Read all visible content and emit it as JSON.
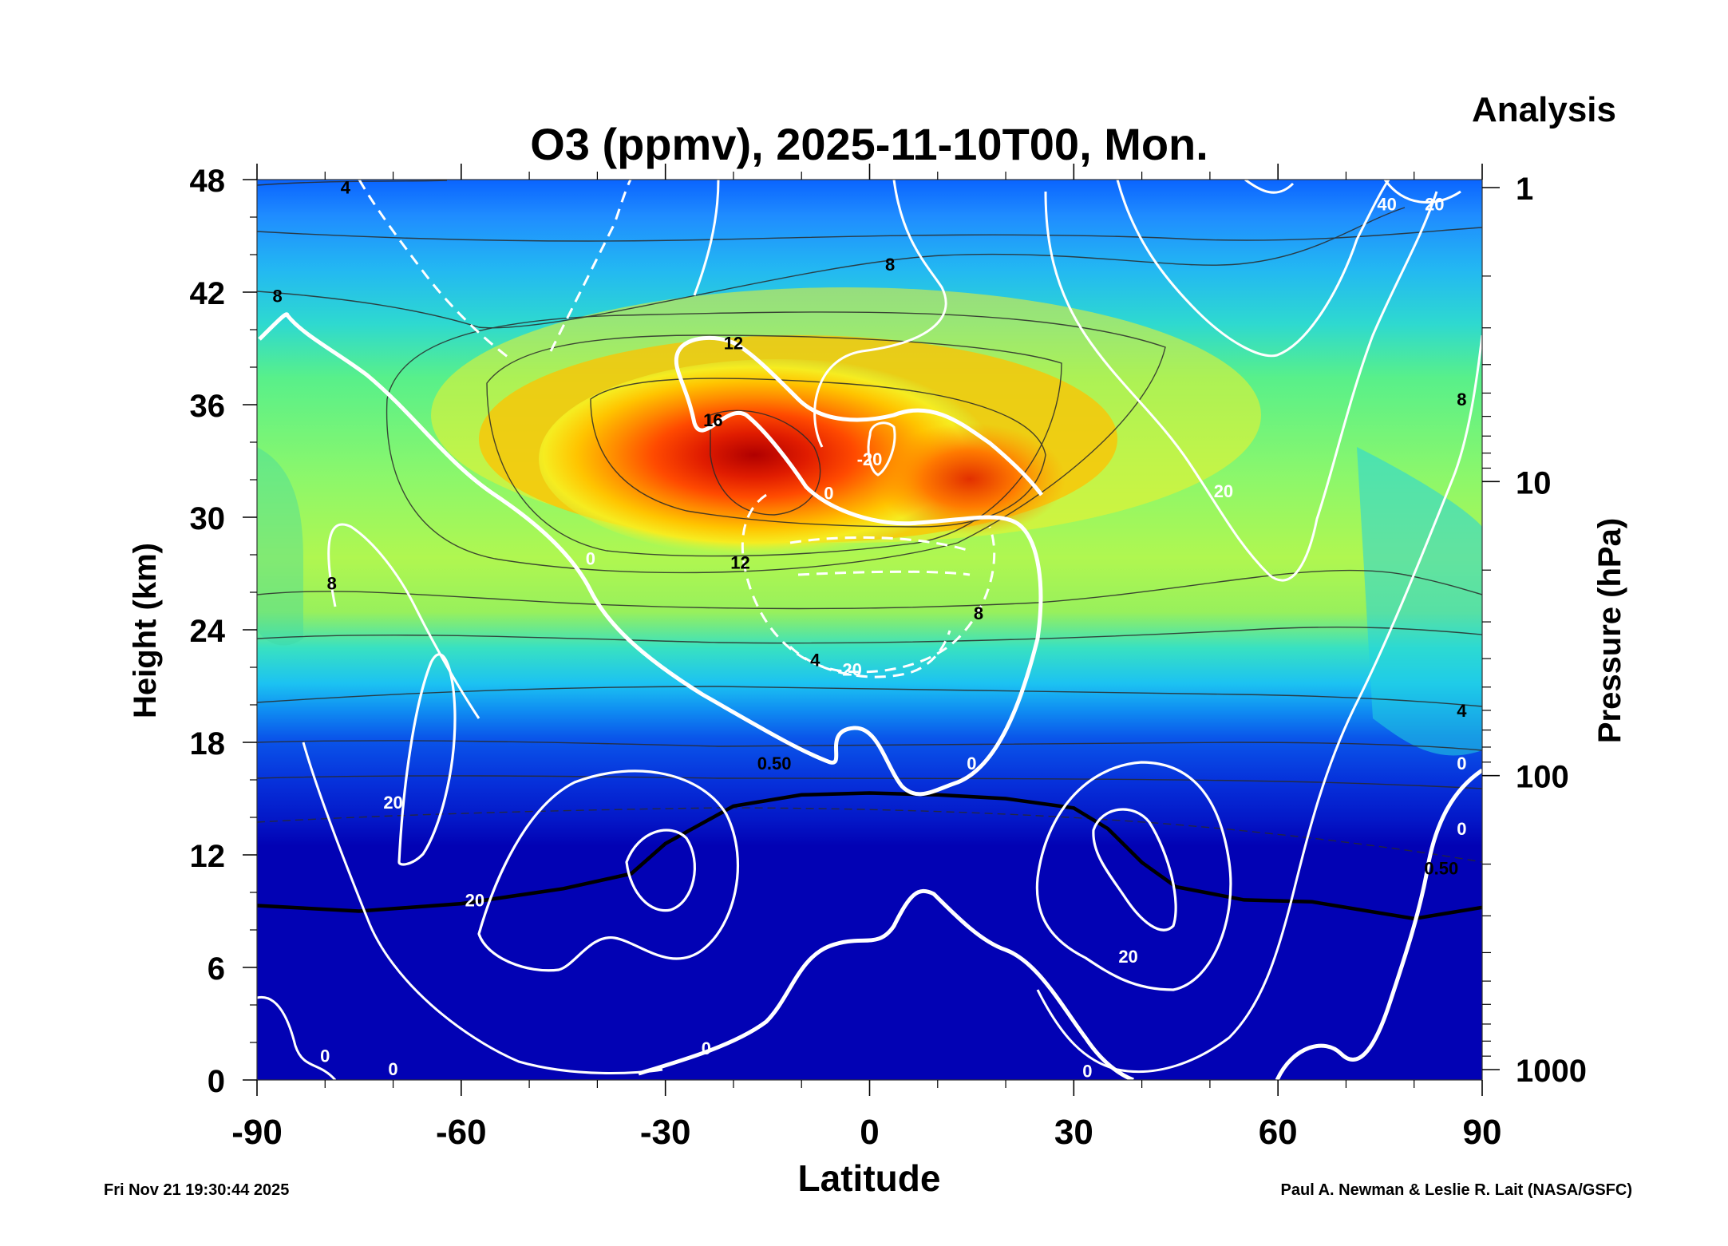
{
  "chart_data": {
    "type": "heatmap",
    "title": "O3 (ppmv), 2025-11-10T00, Mon.",
    "corner_label": "Analysis",
    "xlabel": "Latitude",
    "ylabel_left": "Height (km)",
    "ylabel_right": "Pressure (hPa)",
    "xlim": [
      -90,
      90
    ],
    "ylim": [
      0,
      48
    ],
    "x_ticks": [
      -90,
      -60,
      -30,
      0,
      30,
      60,
      90
    ],
    "x_tick_labels": [
      "-90",
      "-60",
      "-30",
      "0",
      "30",
      "60",
      "90"
    ],
    "y_ticks": [
      0,
      6,
      12,
      18,
      24,
      30,
      36,
      42,
      48
    ],
    "y_tick_labels": [
      "0",
      "6",
      "12",
      "18",
      "24",
      "30",
      "36",
      "42",
      "48"
    ],
    "pressure_ticks_hpa": [
      1,
      10,
      100,
      1000
    ],
    "pressure_tick_labels": [
      "1",
      "10",
      "100",
      "1000"
    ],
    "ozone_contour_levels_ppmv": [
      0.5,
      4,
      8,
      12,
      16
    ],
    "ozone_contour_labels": [
      {
        "text": "4",
        "lat": -77,
        "z": 47.6
      },
      {
        "text": "8",
        "lat": -87,
        "z": 41.8
      },
      {
        "text": "8",
        "lat": 3,
        "z": 43.5
      },
      {
        "text": "8",
        "lat": 87,
        "z": 36.3
      },
      {
        "text": "8",
        "lat": -79,
        "z": 26.5
      },
      {
        "text": "8",
        "lat": 16,
        "z": 24.9
      },
      {
        "text": "12",
        "lat": -20,
        "z": 39.3
      },
      {
        "text": "12",
        "lat": -19,
        "z": 27.6
      },
      {
        "text": "16",
        "lat": -23,
        "z": 35.2
      },
      {
        "text": "4",
        "lat": -8,
        "z": 22.4
      },
      {
        "text": "4",
        "lat": 87,
        "z": 19.7
      },
      {
        "text": "0.50",
        "lat": -14,
        "z": 16.9
      },
      {
        "text": "0.50",
        "lat": 84,
        "z": 11.3
      }
    ],
    "wind_contour_labels": [
      {
        "text": "-20",
        "lat": 0,
        "z": 33.1
      },
      {
        "text": "0",
        "lat": -6,
        "z": 31.3
      },
      {
        "text": "0",
        "lat": -41,
        "z": 27.8
      },
      {
        "text": "-20",
        "lat": -3,
        "z": 21.9
      },
      {
        "text": "20",
        "lat": 52,
        "z": 31.4
      },
      {
        "text": "40",
        "lat": 76,
        "z": 46.7
      },
      {
        "text": "20",
        "lat": 83,
        "z": 46.7
      },
      {
        "text": "20",
        "lat": -70,
        "z": 14.8
      },
      {
        "text": "20",
        "lat": -58,
        "z": 9.6
      },
      {
        "text": "20",
        "lat": 38,
        "z": 6.6
      },
      {
        "text": "0",
        "lat": 15,
        "z": 16.9
      },
      {
        "text": "0",
        "lat": -24,
        "z": 1.7
      },
      {
        "text": "0",
        "lat": 32,
        "z": 0.5
      },
      {
        "text": "0",
        "lat": 87,
        "z": 13.4
      },
      {
        "text": "0",
        "lat": 87,
        "z": 16.9
      },
      {
        "text": "0",
        "lat": -80,
        "z": 1.3
      },
      {
        "text": "0",
        "lat": -70,
        "z": 0.6
      }
    ],
    "ozone_maximum": {
      "lat": -16,
      "z": 32,
      "value_ppmv": 16
    },
    "tropopause_km": {
      "lat": [
        -90,
        -75,
        -60,
        -45,
        -35,
        -30,
        -20,
        -10,
        0,
        10,
        20,
        30,
        35,
        40,
        45,
        55,
        65,
        80,
        90
      ],
      "z": [
        9.3,
        9.0,
        9.4,
        10.2,
        11.0,
        12.6,
        14.6,
        15.2,
        15.3,
        15.2,
        15.0,
        14.5,
        13.4,
        11.6,
        10.3,
        9.6,
        9.5,
        8.6,
        9.2
      ]
    },
    "footer_left": "Fri Nov 21 19:30:44 2025",
    "footer_right": "Paul A. Newman & Leslie R. Lait (NASA/GSFC)"
  }
}
